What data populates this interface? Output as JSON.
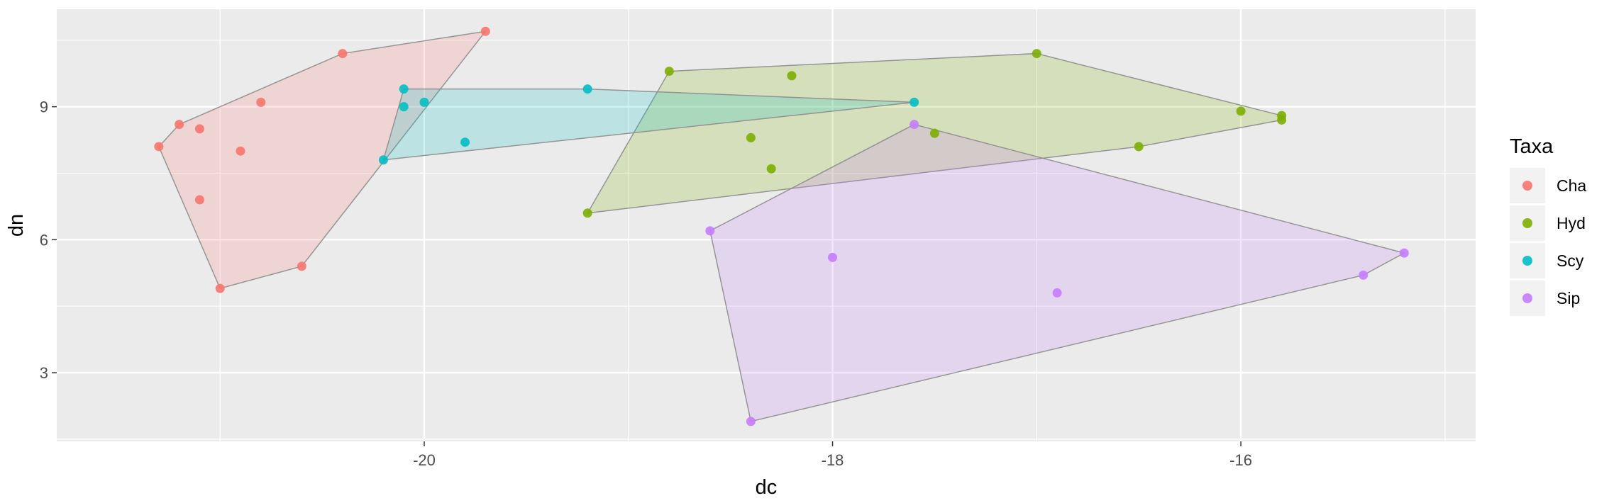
{
  "chart_data": {
    "type": "scatter",
    "xlabel": "dc",
    "ylabel": "dn",
    "xlim": [
      -21.8,
      -14.85
    ],
    "ylim": [
      1.45,
      11.2
    ],
    "x_ticks": [
      -20,
      -18,
      -16
    ],
    "y_ticks": [
      3,
      6,
      9
    ],
    "x_tick_labels": [
      "-20",
      "-18",
      "-16"
    ],
    "y_tick_labels": [
      "3",
      "6",
      "9"
    ],
    "grid": true,
    "hulls": true,
    "legend": {
      "title": "Taxa",
      "position": "right"
    },
    "series": [
      {
        "name": "Cha",
        "color": "#F8766D",
        "points": [
          [
            -21.3,
            8.1
          ],
          [
            -21.2,
            8.6
          ],
          [
            -21.1,
            8.5
          ],
          [
            -21.1,
            6.9
          ],
          [
            -21.0,
            4.9
          ],
          [
            -20.9,
            8.0
          ],
          [
            -20.8,
            9.1
          ],
          [
            -20.6,
            5.4
          ],
          [
            -20.4,
            10.2
          ],
          [
            -19.7,
            10.7
          ]
        ],
        "hull": [
          [
            -21.3,
            8.1
          ],
          [
            -21.2,
            8.6
          ],
          [
            -20.4,
            10.2
          ],
          [
            -19.7,
            10.7
          ],
          [
            -20.6,
            5.4
          ],
          [
            -21.0,
            4.9
          ]
        ]
      },
      {
        "name": "Hyd",
        "color": "#7CAE00",
        "points": [
          [
            -19.2,
            6.6
          ],
          [
            -18.8,
            9.8
          ],
          [
            -18.4,
            8.3
          ],
          [
            -18.3,
            7.6
          ],
          [
            -18.2,
            9.7
          ],
          [
            -17.5,
            8.4
          ],
          [
            -17.0,
            10.2
          ],
          [
            -16.5,
            8.1
          ],
          [
            -16.0,
            8.9
          ],
          [
            -15.8,
            8.8
          ],
          [
            -15.8,
            8.7
          ]
        ],
        "hull": [
          [
            -19.2,
            6.6
          ],
          [
            -18.8,
            9.8
          ],
          [
            -17.0,
            10.2
          ],
          [
            -15.8,
            8.8
          ],
          [
            -15.8,
            8.7
          ],
          [
            -16.5,
            8.1
          ]
        ]
      },
      {
        "name": "Scy",
        "color": "#00BFC4",
        "points": [
          [
            -20.2,
            7.8
          ],
          [
            -20.1,
            9.4
          ],
          [
            -20.1,
            9.0
          ],
          [
            -20.0,
            9.1
          ],
          [
            -19.8,
            8.2
          ],
          [
            -19.2,
            9.4
          ],
          [
            -17.6,
            9.1
          ]
        ],
        "hull": [
          [
            -20.2,
            7.8
          ],
          [
            -20.1,
            9.4
          ],
          [
            -19.2,
            9.4
          ],
          [
            -17.6,
            9.1
          ]
        ]
      },
      {
        "name": "Sip",
        "color": "#C77CFF",
        "points": [
          [
            -18.6,
            6.2
          ],
          [
            -18.4,
            1.9
          ],
          [
            -18.0,
            5.6
          ],
          [
            -17.6,
            8.6
          ],
          [
            -16.9,
            4.8
          ],
          [
            -15.4,
            5.2
          ],
          [
            -15.2,
            5.7
          ]
        ],
        "hull": [
          [
            -18.6,
            6.2
          ],
          [
            -17.6,
            8.6
          ],
          [
            -15.2,
            5.7
          ],
          [
            -15.4,
            5.2
          ],
          [
            -18.4,
            1.9
          ]
        ]
      }
    ]
  }
}
